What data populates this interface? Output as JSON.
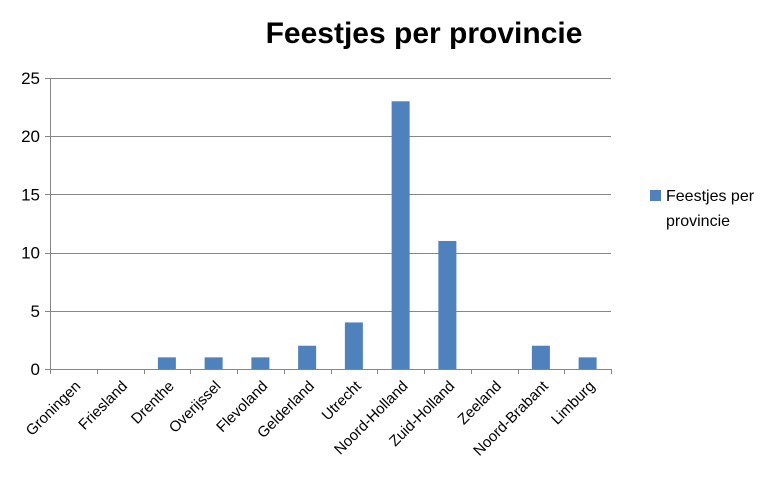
{
  "chart_data": {
    "type": "bar",
    "title": "Feestjes per provincie",
    "categories": [
      "Groningen",
      "Friesland",
      "Drenthe",
      "Overijssel",
      "Flevoland",
      "Gelderland",
      "Utrecht",
      "Noord-Holland",
      "Zuid-Holland",
      "Zeeland",
      "Noord-Brabant",
      "Limburg"
    ],
    "series": [
      {
        "name": "Feestjes per provincie",
        "values": [
          0,
          0,
          1,
          1,
          1,
          2,
          4,
          23,
          11,
          0,
          2,
          1
        ],
        "color": "#4F81BD"
      }
    ],
    "ylim": [
      0,
      25
    ],
    "yticks": [
      0,
      5,
      10,
      15,
      20,
      25
    ],
    "ytick_labels": [
      "0",
      "5",
      "10",
      "15",
      "20",
      "25"
    ],
    "grid": true,
    "legend_position": "right",
    "legend_lines": [
      "Feestjes per",
      "provincie"
    ]
  }
}
